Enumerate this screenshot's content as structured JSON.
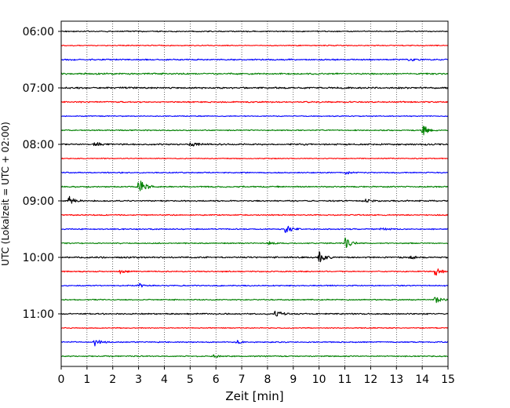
{
  "chart_data": {
    "type": "line",
    "title": "",
    "xlabel": "Zeit  [min]",
    "ylabel": "UTC (Lokalzeit = UTC + 02:00)",
    "xlim": [
      0,
      15
    ],
    "xticks": [
      0,
      1,
      2,
      3,
      4,
      5,
      6,
      7,
      8,
      9,
      10,
      11,
      12,
      13,
      14,
      15
    ],
    "grid": "vertical dotted",
    "trace_interval_min": 15,
    "first_trace": "06:00",
    "yticks": [
      {
        "trace_index": 0,
        "label": "06:00"
      },
      {
        "trace_index": 4,
        "label": "07:00"
      },
      {
        "trace_index": 8,
        "label": "08:00"
      },
      {
        "trace_index": 12,
        "label": "09:00"
      },
      {
        "trace_index": 16,
        "label": "10:00"
      },
      {
        "trace_index": 20,
        "label": "11:00"
      }
    ],
    "colors": [
      "#000000",
      "#ff0000",
      "#0000ff",
      "#008000"
    ],
    "traces": [
      {
        "start": "06:00",
        "color": "#000000",
        "noise": 0.3,
        "events": []
      },
      {
        "start": "06:15",
        "color": "#ff0000",
        "noise": 0.25,
        "events": []
      },
      {
        "start": "06:30",
        "color": "#0000ff",
        "noise": 0.35,
        "events": [
          {
            "t": 13.5,
            "amp": 0.5
          }
        ]
      },
      {
        "start": "06:45",
        "color": "#008000",
        "noise": 0.4,
        "events": []
      },
      {
        "start": "07:00",
        "color": "#000000",
        "noise": 0.45,
        "events": []
      },
      {
        "start": "07:15",
        "color": "#ff0000",
        "noise": 0.35,
        "events": []
      },
      {
        "start": "07:30",
        "color": "#0000ff",
        "noise": 0.25,
        "events": []
      },
      {
        "start": "07:45",
        "color": "#008000",
        "noise": 0.3,
        "events": [
          {
            "t": 14.0,
            "amp": 1.9
          }
        ]
      },
      {
        "start": "08:00",
        "color": "#000000",
        "noise": 0.4,
        "events": [
          {
            "t": 1.3,
            "amp": 0.8
          },
          {
            "t": 5.0,
            "amp": 0.7
          }
        ]
      },
      {
        "start": "08:15",
        "color": "#ff0000",
        "noise": 0.25,
        "events": []
      },
      {
        "start": "08:30",
        "color": "#0000ff",
        "noise": 0.3,
        "events": [
          {
            "t": 11.0,
            "amp": 0.5
          }
        ]
      },
      {
        "start": "08:45",
        "color": "#008000",
        "noise": 0.35,
        "events": [
          {
            "t": 3.0,
            "amp": 3.0
          }
        ]
      },
      {
        "start": "09:00",
        "color": "#000000",
        "noise": 0.35,
        "events": [
          {
            "t": 0.3,
            "amp": 1.3
          },
          {
            "t": 11.8,
            "amp": 0.5
          }
        ]
      },
      {
        "start": "09:15",
        "color": "#ff0000",
        "noise": 0.3,
        "events": []
      },
      {
        "start": "09:30",
        "color": "#0000ff",
        "noise": 0.3,
        "events": [
          {
            "t": 8.7,
            "amp": 1.8
          },
          {
            "t": 12.4,
            "amp": 0.5
          }
        ]
      },
      {
        "start": "09:45",
        "color": "#008000",
        "noise": 0.3,
        "events": [
          {
            "t": 11.0,
            "amp": 1.9
          },
          {
            "t": 8.0,
            "amp": 0.6
          }
        ]
      },
      {
        "start": "10:00",
        "color": "#000000",
        "noise": 0.4,
        "events": [
          {
            "t": 10.0,
            "amp": 1.7
          },
          {
            "t": 13.5,
            "amp": 0.7
          }
        ]
      },
      {
        "start": "10:15",
        "color": "#ff0000",
        "noise": 0.3,
        "events": [
          {
            "t": 2.3,
            "amp": 0.7
          },
          {
            "t": 14.5,
            "amp": 1.4
          }
        ]
      },
      {
        "start": "10:30",
        "color": "#0000ff",
        "noise": 0.3,
        "events": [
          {
            "t": 3.0,
            "amp": 0.7
          }
        ]
      },
      {
        "start": "10:45",
        "color": "#008000",
        "noise": 0.3,
        "events": [
          {
            "t": 14.5,
            "amp": 1.1
          }
        ]
      },
      {
        "start": "11:00",
        "color": "#000000",
        "noise": 0.35,
        "events": [
          {
            "t": 8.3,
            "amp": 1.2
          }
        ]
      },
      {
        "start": "11:15",
        "color": "#ff0000",
        "noise": 0.25,
        "events": []
      },
      {
        "start": "11:30",
        "color": "#0000ff",
        "noise": 0.3,
        "events": [
          {
            "t": 1.3,
            "amp": 1.5
          },
          {
            "t": 6.8,
            "amp": 0.5
          }
        ]
      },
      {
        "start": "11:45",
        "color": "#008000",
        "noise": 0.3,
        "events": [
          {
            "t": 5.9,
            "amp": 0.4
          }
        ]
      }
    ]
  }
}
